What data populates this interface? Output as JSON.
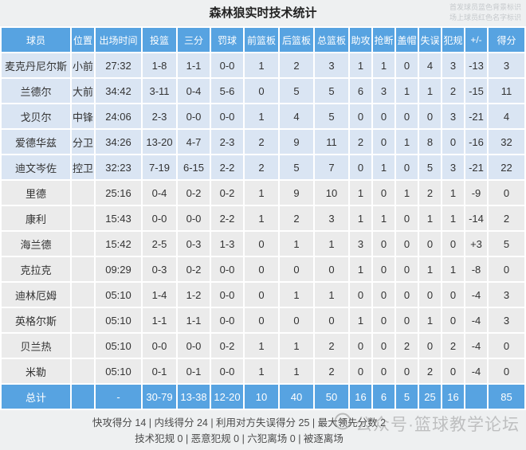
{
  "title": "森林狼实时技术统计",
  "legend": {
    "line1": "首发球员蓝色背景标识",
    "line2": "场上球员红色名字标识"
  },
  "colors": {
    "header_blue": "#57a3e1",
    "starter_row_bg": "#dae5f3",
    "bench_row_bg": "#ebebeb",
    "on_court_red_name": "#e8514b",
    "panel_gray": "#eef0f1"
  },
  "table": {
    "columns": [
      "球员",
      "位置",
      "出场时间",
      "投篮",
      "三分",
      "罚球",
      "前篮板",
      "后篮板",
      "总篮板",
      "助攻",
      "抢断",
      "盖帽",
      "失误",
      "犯规",
      "+/-",
      "得分"
    ],
    "rows": [
      {
        "name": "麦克丹尼尔斯",
        "starter": true,
        "red": false,
        "cells": [
          "小前",
          "27:32",
          "1-8",
          "1-1",
          "0-0",
          "1",
          "2",
          "3",
          "1",
          "1",
          "0",
          "4",
          "3",
          "-13",
          "3"
        ]
      },
      {
        "name": "兰德尔",
        "starter": true,
        "red": false,
        "cells": [
          "大前",
          "34:42",
          "3-11",
          "0-4",
          "5-6",
          "0",
          "5",
          "5",
          "6",
          "3",
          "1",
          "1",
          "2",
          "-15",
          "11"
        ]
      },
      {
        "name": "戈贝尔",
        "starter": true,
        "red": false,
        "cells": [
          "中锋",
          "24:06",
          "2-3",
          "0-0",
          "0-0",
          "1",
          "4",
          "5",
          "0",
          "0",
          "0",
          "0",
          "3",
          "-21",
          "4"
        ]
      },
      {
        "name": "爱德华兹",
        "starter": true,
        "red": false,
        "cells": [
          "分卫",
          "34:26",
          "13-20",
          "4-7",
          "2-3",
          "2",
          "9",
          "11",
          "2",
          "0",
          "1",
          "8",
          "0",
          "-16",
          "32"
        ]
      },
      {
        "name": "迪文岑佐",
        "starter": true,
        "red": false,
        "cells": [
          "控卫",
          "32:23",
          "7-19",
          "6-15",
          "2-2",
          "2",
          "5",
          "7",
          "0",
          "1",
          "0",
          "5",
          "3",
          "-21",
          "22"
        ]
      },
      {
        "name": "里德",
        "starter": false,
        "red": false,
        "cells": [
          "",
          "25:16",
          "0-4",
          "0-2",
          "0-2",
          "1",
          "9",
          "10",
          "1",
          "0",
          "1",
          "2",
          "1",
          "-9",
          "0"
        ]
      },
      {
        "name": "康利",
        "starter": false,
        "red": false,
        "cells": [
          "",
          "15:43",
          "0-0",
          "0-0",
          "2-2",
          "1",
          "2",
          "3",
          "1",
          "1",
          "0",
          "1",
          "1",
          "-14",
          "2"
        ]
      },
      {
        "name": "海兰德",
        "starter": false,
        "red": false,
        "cells": [
          "",
          "15:42",
          "2-5",
          "0-3",
          "1-3",
          "0",
          "1",
          "1",
          "3",
          "0",
          "0",
          "0",
          "0",
          "+3",
          "5"
        ]
      },
      {
        "name": "克拉克",
        "starter": false,
        "red": true,
        "cells": [
          "",
          "09:29",
          "0-3",
          "0-2",
          "0-0",
          "0",
          "0",
          "0",
          "1",
          "0",
          "0",
          "1",
          "1",
          "-8",
          "0"
        ]
      },
      {
        "name": "迪林厄姆",
        "starter": false,
        "red": true,
        "cells": [
          "",
          "05:10",
          "1-4",
          "1-2",
          "0-0",
          "0",
          "1",
          "1",
          "0",
          "0",
          "0",
          "0",
          "0",
          "-4",
          "3"
        ]
      },
      {
        "name": "英格尔斯",
        "starter": false,
        "red": true,
        "cells": [
          "",
          "05:10",
          "1-1",
          "1-1",
          "0-0",
          "0",
          "0",
          "0",
          "1",
          "0",
          "0",
          "1",
          "0",
          "-4",
          "3"
        ]
      },
      {
        "name": "贝兰热",
        "starter": false,
        "red": true,
        "cells": [
          "",
          "05:10",
          "0-0",
          "0-0",
          "0-2",
          "1",
          "1",
          "2",
          "0",
          "0",
          "2",
          "0",
          "2",
          "-4",
          "0"
        ]
      },
      {
        "name": "米勒",
        "starter": false,
        "red": true,
        "cells": [
          "",
          "05:10",
          "0-1",
          "0-1",
          "0-0",
          "1",
          "1",
          "2",
          "0",
          "0",
          "0",
          "2",
          "0",
          "-4",
          "0"
        ]
      }
    ],
    "total": {
      "name": "总计",
      "cells": [
        "",
        "-",
        "30-79",
        "13-38",
        "12-20",
        "10",
        "40",
        "50",
        "16",
        "6",
        "5",
        "25",
        "16",
        "",
        "85"
      ]
    }
  },
  "footer": {
    "line1": "快攻得分 14 | 内线得分 24 | 利用对方失误得分 25 | 最大领先分数 2",
    "line2": "技术犯规 0 | 恶意犯规 0 | 六犯离场 0 | 被逐离场"
  },
  "watermark": {
    "icon": "official-account-logo-icon",
    "text": "公众号·篮球教学论坛"
  }
}
